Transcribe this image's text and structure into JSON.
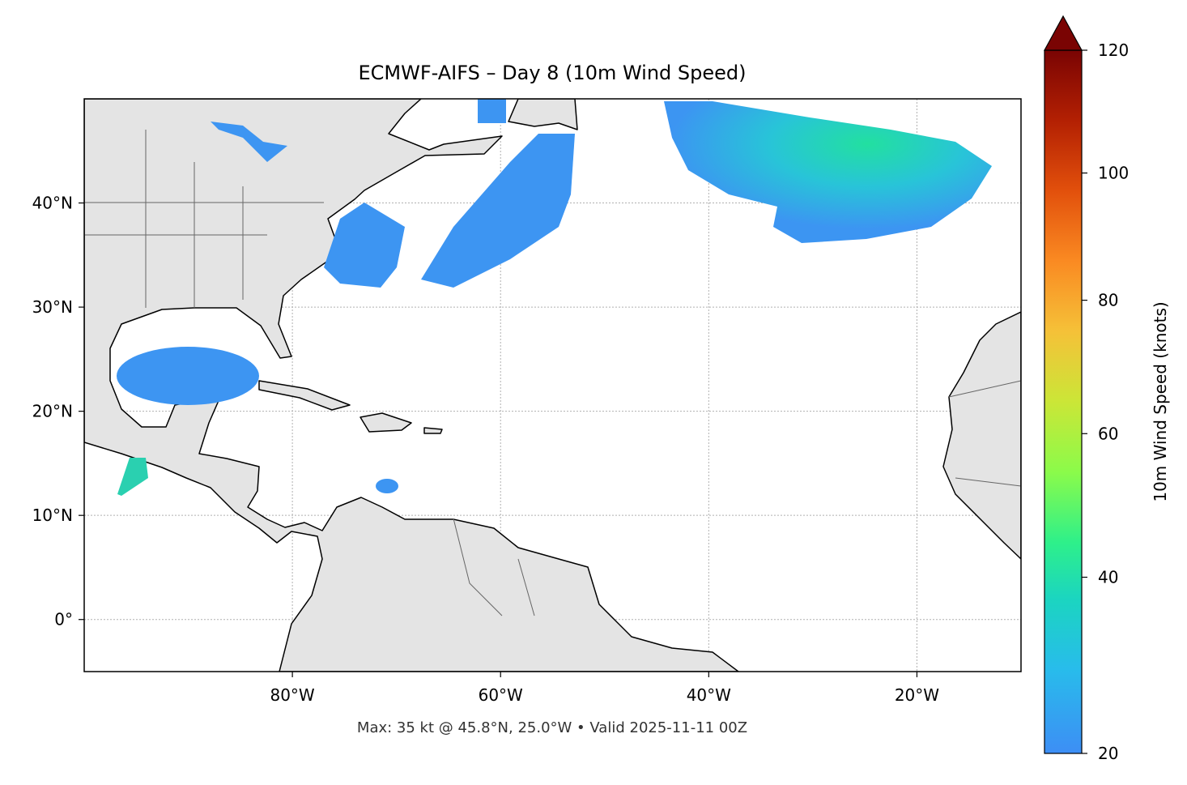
{
  "chart_data": {
    "type": "map",
    "title": "ECMWF-AIFS – Day 8 (10m Wind Speed)",
    "footer": "Max: 35 kt @ 45.8°N, 25.0°W • Valid 2025-11-11 00Z",
    "xlim": [
      -100,
      -10
    ],
    "ylim": [
      -5,
      50
    ],
    "xticks": [
      {
        "value": -80,
        "label": "80°W"
      },
      {
        "value": -60,
        "label": "60°W"
      },
      {
        "value": -40,
        "label": "40°W"
      },
      {
        "value": -20,
        "label": "20°W"
      }
    ],
    "yticks": [
      {
        "value": 0,
        "label": "0°"
      },
      {
        "value": 10,
        "label": "10°N"
      },
      {
        "value": 20,
        "label": "20°N"
      },
      {
        "value": 30,
        "label": "30°N"
      },
      {
        "value": 40,
        "label": "40°N"
      }
    ],
    "grid": true,
    "colorbar": {
      "label": "10m Wind Speed (knots)",
      "lim": [
        20,
        120
      ],
      "ticks": [
        20,
        40,
        60,
        80,
        100,
        120
      ]
    }
  }
}
